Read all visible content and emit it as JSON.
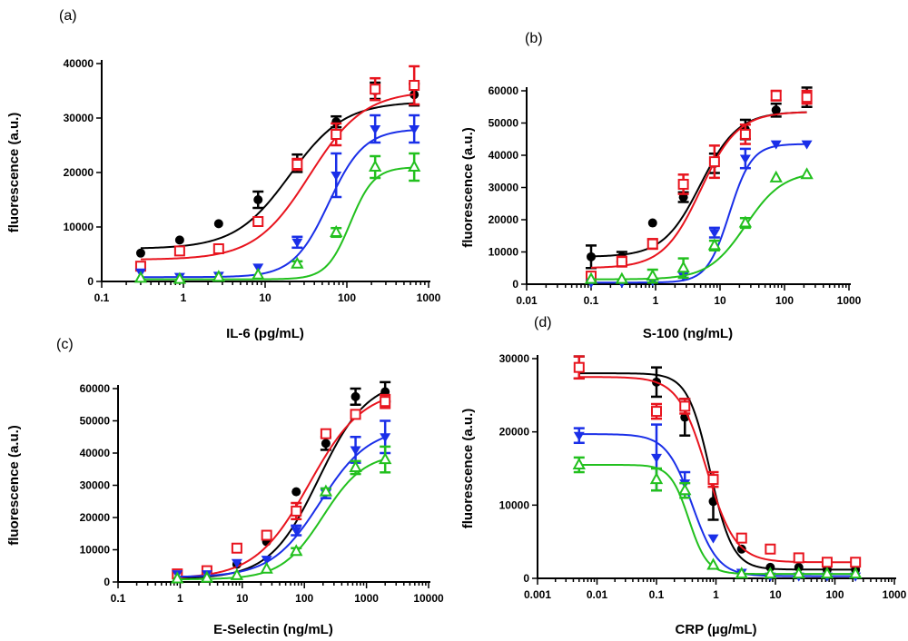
{
  "colors": {
    "black": "#000000",
    "red": "#e8141e",
    "blue": "#1a2fe8",
    "green": "#22c01e"
  },
  "chart_data": [
    {
      "panel_label": "(a)",
      "type": "scatter",
      "xlabel": "IL-6 (pg/mL)",
      "ylabel": "fluorescence (a.u.)",
      "xscale": "log",
      "xlim": [
        0.1,
        1000
      ],
      "ylim": [
        0,
        40000
      ],
      "xticks": [
        0.1,
        1,
        10,
        100,
        1000
      ],
      "xtick_labels": [
        "0.1",
        "1",
        "10",
        "100",
        "1000"
      ],
      "yticks": [
        0,
        10000,
        20000,
        30000,
        40000
      ],
      "ytick_labels": [
        "0",
        "10000",
        "20000",
        "30000",
        "40000"
      ],
      "series": [
        {
          "name": "series-black",
          "color": "black",
          "marker": "circle",
          "x": [
            0.3,
            0.9,
            2.7,
            8.2,
            24.7,
            74,
            222,
            667
          ],
          "y": [
            5200,
            7600,
            10600,
            15000,
            21700,
            29300,
            35000,
            34300
          ],
          "err": [
            0,
            0,
            0,
            1500,
            1600,
            1000,
            1500,
            2000
          ],
          "fit": {
            "bottom": 6000,
            "top": 33000,
            "ec50": 20,
            "hill": 1.3
          }
        },
        {
          "name": "series-red",
          "color": "red",
          "marker": "open-square",
          "x": [
            0.3,
            0.9,
            2.7,
            8.2,
            24.7,
            74,
            222,
            667
          ],
          "y": [
            2800,
            5600,
            6000,
            11000,
            21500,
            27000,
            35300,
            36000
          ],
          "err": [
            0,
            0,
            0,
            0,
            1000,
            2000,
            2000,
            3500
          ],
          "fit": {
            "bottom": 4000,
            "top": 35000,
            "ec50": 35,
            "hill": 1.3
          }
        },
        {
          "name": "series-blue",
          "color": "blue",
          "marker": "filled-triangle-down",
          "x": [
            0.3,
            0.9,
            2.7,
            8.2,
            24.7,
            74,
            222,
            667
          ],
          "y": [
            1700,
            900,
            1100,
            2600,
            7200,
            19500,
            28000,
            28000
          ],
          "err": [
            0,
            0,
            0,
            0,
            1000,
            4000,
            2500,
            2500
          ],
          "fit": {
            "bottom": 800,
            "top": 28000,
            "ec50": 60,
            "hill": 2.0
          }
        },
        {
          "name": "series-green",
          "color": "green",
          "marker": "open-triangle-up",
          "x": [
            0.3,
            0.9,
            2.7,
            8.2,
            24.7,
            74,
            222,
            667
          ],
          "y": [
            600,
            400,
            800,
            1200,
            3200,
            9000,
            21000,
            21000
          ],
          "err": [
            0,
            0,
            0,
            0,
            500,
            800,
            2000,
            2500
          ],
          "fit": {
            "bottom": 400,
            "top": 21000,
            "ec50": 110,
            "hill": 3.0
          }
        }
      ]
    },
    {
      "panel_label": "(b)",
      "type": "scatter",
      "xlabel": "S-100 (ng/mL)",
      "ylabel": "fluorescence (a.u.)",
      "xscale": "log",
      "xlim": [
        0.01,
        1000
      ],
      "ylim": [
        0,
        60000
      ],
      "xticks": [
        0.01,
        0.1,
        1,
        10,
        100,
        1000
      ],
      "xtick_labels": [
        "0.01",
        "0.1",
        "1",
        "10",
        "100",
        "1000"
      ],
      "yticks": [
        0,
        10000,
        20000,
        30000,
        40000,
        50000,
        60000
      ],
      "ytick_labels": [
        "0",
        "10000",
        "20000",
        "30000",
        "40000",
        "50000",
        "60000"
      ],
      "series": [
        {
          "name": "series-black",
          "color": "black",
          "marker": "circle",
          "x": [
            0.1,
            0.3,
            0.9,
            2.7,
            8.2,
            24.7,
            74,
            222
          ],
          "y": [
            8500,
            8500,
            19000,
            27000,
            37500,
            48000,
            54000,
            58000
          ],
          "err": [
            3500,
            1500,
            0,
            1500,
            3000,
            3000,
            2000,
            3000
          ],
          "fit": {
            "bottom": 8500,
            "top": 53500,
            "ec50": 5,
            "hill": 1.5
          }
        },
        {
          "name": "series-red",
          "color": "red",
          "marker": "open-square",
          "x": [
            0.1,
            0.3,
            0.9,
            2.7,
            8.2,
            24.7,
            74,
            222
          ],
          "y": [
            2500,
            7000,
            12500,
            31000,
            38000,
            46500,
            58500,
            58000
          ],
          "err": [
            0,
            1500,
            1500,
            3000,
            5000,
            3000,
            1500,
            2000
          ],
          "fit": {
            "bottom": 5000,
            "top": 53500,
            "ec50": 5,
            "hill": 1.5
          }
        },
        {
          "name": "series-blue",
          "color": "blue",
          "marker": "filled-triangle-down",
          "x": [
            0.1,
            0.3,
            0.9,
            2.7,
            8.2,
            24.7,
            74,
            222
          ],
          "y": [
            500,
            500,
            1000,
            2500,
            16000,
            39000,
            43500,
            43500
          ],
          "err": [
            0,
            0,
            0,
            0,
            1500,
            3000,
            0,
            0
          ],
          "fit": {
            "bottom": 500,
            "top": 43500,
            "ec50": 14,
            "hill": 2.5
          }
        },
        {
          "name": "series-green",
          "color": "green",
          "marker": "open-triangle-up",
          "x": [
            0.1,
            0.3,
            0.9,
            2.7,
            8.2,
            24.7,
            74,
            222
          ],
          "y": [
            1500,
            1500,
            2500,
            5000,
            12000,
            19000,
            33000,
            34000
          ],
          "err": [
            0,
            0,
            2000,
            3000,
            1500,
            1500,
            0,
            0
          ],
          "fit": {
            "bottom": 1500,
            "top": 35000,
            "ec50": 25,
            "hill": 1.5
          }
        }
      ]
    },
    {
      "panel_label": "(c)",
      "type": "scatter",
      "xlabel": "E-Selectin (ng/mL)",
      "ylabel": "fluorescence (a.u.)",
      "xscale": "log",
      "xlim": [
        0.1,
        10000
      ],
      "ylim": [
        0,
        60000
      ],
      "xticks": [
        0.1,
        1,
        10,
        100,
        1000,
        10000
      ],
      "xtick_labels": [
        "0.1",
        "1",
        "10",
        "100",
        "1000",
        "10000"
      ],
      "yticks": [
        0,
        10000,
        20000,
        30000,
        40000,
        50000,
        60000
      ],
      "ytick_labels": [
        "0",
        "10000",
        "20000",
        "30000",
        "40000",
        "50000",
        "60000"
      ],
      "series": [
        {
          "name": "series-black",
          "color": "black",
          "marker": "circle",
          "x": [
            0.9,
            2.7,
            8.2,
            24.7,
            74,
            222,
            667,
            2000
          ],
          "y": [
            2000,
            3000,
            5500,
            12500,
            28000,
            43000,
            57500,
            59000
          ],
          "err": [
            0,
            0,
            0,
            0,
            0,
            2000,
            2500,
            3000
          ],
          "fit": {
            "bottom": 1000,
            "top": 63000,
            "ec50": 170,
            "hill": 1.1
          }
        },
        {
          "name": "series-red",
          "color": "red",
          "marker": "open-square",
          "x": [
            0.9,
            2.7,
            8.2,
            24.7,
            74,
            222,
            667,
            2000
          ],
          "y": [
            2500,
            3500,
            10500,
            14500,
            22000,
            46000,
            52000,
            56000
          ],
          "err": [
            0,
            0,
            0,
            0,
            2500,
            0,
            0,
            2000
          ],
          "fit": {
            "bottom": 1000,
            "top": 60000,
            "ec50": 120,
            "hill": 1.0
          }
        },
        {
          "name": "series-blue",
          "color": "blue",
          "marker": "filled-triangle-down",
          "x": [
            0.9,
            2.7,
            8.2,
            24.7,
            74,
            222,
            667,
            2000
          ],
          "y": [
            2500,
            2500,
            6000,
            7000,
            16000,
            27500,
            41000,
            45000
          ],
          "err": [
            0,
            0,
            0,
            0,
            1500,
            1500,
            4000,
            5000
          ],
          "fit": {
            "bottom": 1500,
            "top": 48000,
            "ec50": 180,
            "hill": 1.1
          }
        },
        {
          "name": "series-green",
          "color": "green",
          "marker": "open-triangle-up",
          "x": [
            0.9,
            2.7,
            8.2,
            24.7,
            74,
            222,
            667,
            2000
          ],
          "y": [
            1000,
            1200,
            2000,
            4000,
            9500,
            28000,
            35500,
            38000
          ],
          "err": [
            0,
            0,
            0,
            0,
            1000,
            1000,
            2000,
            4000
          ],
          "fit": {
            "bottom": 800,
            "top": 40000,
            "ec50": 200,
            "hill": 1.3
          }
        }
      ]
    },
    {
      "panel_label": "(d)",
      "type": "scatter",
      "xlabel": "CRP (µg/mL)",
      "ylabel": "fluorescence (a.u.)",
      "xscale": "log",
      "xlim": [
        0.001,
        1000
      ],
      "ylim": [
        0,
        30000
      ],
      "xticks": [
        0.001,
        0.01,
        0.1,
        1,
        10,
        100,
        1000
      ],
      "xtick_labels": [
        "0.001",
        "0.01",
        "0.1",
        "1",
        "10",
        "100",
        "1000"
      ],
      "yticks": [
        0,
        10000,
        20000,
        30000
      ],
      "ytick_labels": [
        "0",
        "10000",
        "20000",
        "30000"
      ],
      "series": [
        {
          "name": "series-black",
          "color": "black",
          "marker": "circle",
          "x": [
            0.005,
            0.1,
            0.3,
            0.9,
            2.7,
            8.2,
            24.7,
            74,
            222
          ],
          "y": [
            28800,
            26800,
            22000,
            10500,
            4000,
            1500,
            1500,
            1200,
            1200
          ],
          "err": [
            1500,
            2000,
            2500,
            2500,
            0,
            0,
            0,
            0,
            0
          ],
          "fit": {
            "bottom": 1200,
            "top": 28000,
            "ec50": 0.8,
            "hill": -2.3
          }
        },
        {
          "name": "series-red",
          "color": "red",
          "marker": "open-square",
          "x": [
            0.005,
            0.1,
            0.3,
            0.9,
            2.7,
            8.2,
            24.7,
            74,
            222
          ],
          "y": [
            28800,
            22800,
            23500,
            13500,
            5500,
            4000,
            2800,
            2200,
            2200
          ],
          "err": [
            1500,
            1000,
            1000,
            1000,
            0,
            0,
            0,
            0,
            0
          ],
          "fit": {
            "bottom": 2200,
            "top": 27500,
            "ec50": 0.7,
            "hill": -1.8
          }
        },
        {
          "name": "series-blue",
          "color": "blue",
          "marker": "filled-triangle-down",
          "x": [
            0.005,
            0.1,
            0.3,
            0.9,
            2.7,
            8.2,
            24.7,
            74,
            222
          ],
          "y": [
            19500,
            16500,
            13000,
            5500,
            800,
            300,
            300,
            300,
            300
          ],
          "err": [
            1000,
            4500,
            1500,
            0,
            0,
            0,
            0,
            0,
            0
          ],
          "fit": {
            "bottom": 300,
            "top": 19700,
            "ec50": 0.4,
            "hill": -2.0
          }
        },
        {
          "name": "series-green",
          "color": "green",
          "marker": "open-triangle-up",
          "x": [
            0.005,
            0.1,
            0.3,
            0.9,
            2.7,
            8.2,
            24.7,
            74,
            222
          ],
          "y": [
            15500,
            13500,
            12000,
            1800,
            600,
            600,
            600,
            600,
            600
          ],
          "err": [
            1000,
            1500,
            1000,
            0,
            0,
            0,
            0,
            0,
            0
          ],
          "fit": {
            "bottom": 600,
            "top": 15500,
            "ec50": 0.35,
            "hill": -2.8
          }
        }
      ]
    }
  ]
}
